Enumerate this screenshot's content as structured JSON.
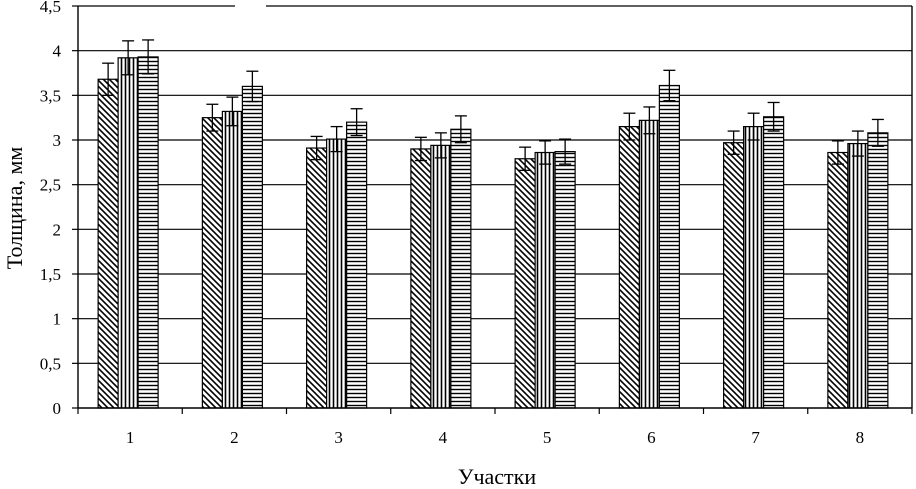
{
  "chart_data": {
    "type": "bar",
    "title": "",
    "xlabel": "Участки",
    "ylabel": "Толщина, мм",
    "ylim": [
      0,
      4.5
    ],
    "y_ticks": [
      "0",
      "0,5",
      "1",
      "1,5",
      "2",
      "2,5",
      "3",
      "3,5",
      "4",
      "4,5"
    ],
    "y_tick_values": [
      0,
      0.5,
      1,
      1.5,
      2,
      2.5,
      3,
      3.5,
      4,
      4.5
    ],
    "grid": true,
    "legend": "none",
    "categories": [
      "1",
      "2",
      "3",
      "4",
      "5",
      "6",
      "7",
      "8"
    ],
    "series": [
      {
        "pattern": "diagonal-hatch",
        "values": [
          3.68,
          3.25,
          2.91,
          2.9,
          2.79,
          3.15,
          2.97,
          2.86
        ],
        "errors": [
          0.18,
          0.15,
          0.13,
          0.13,
          0.13,
          0.15,
          0.13,
          0.13
        ]
      },
      {
        "pattern": "vertical-lines",
        "values": [
          3.92,
          3.32,
          3.01,
          2.94,
          2.86,
          3.22,
          3.15,
          2.96
        ],
        "errors": [
          0.19,
          0.16,
          0.14,
          0.14,
          0.13,
          0.15,
          0.15,
          0.14
        ]
      },
      {
        "pattern": "horizontal-lines",
        "values": [
          3.93,
          3.6,
          3.2,
          3.12,
          2.87,
          3.61,
          3.26,
          3.08
        ],
        "errors": [
          0.19,
          0.17,
          0.15,
          0.15,
          0.14,
          0.17,
          0.16,
          0.15
        ]
      }
    ],
    "colors": {
      "bar_fill": "#ffffff",
      "stroke": "#000000",
      "background": "#ffffff"
    }
  }
}
